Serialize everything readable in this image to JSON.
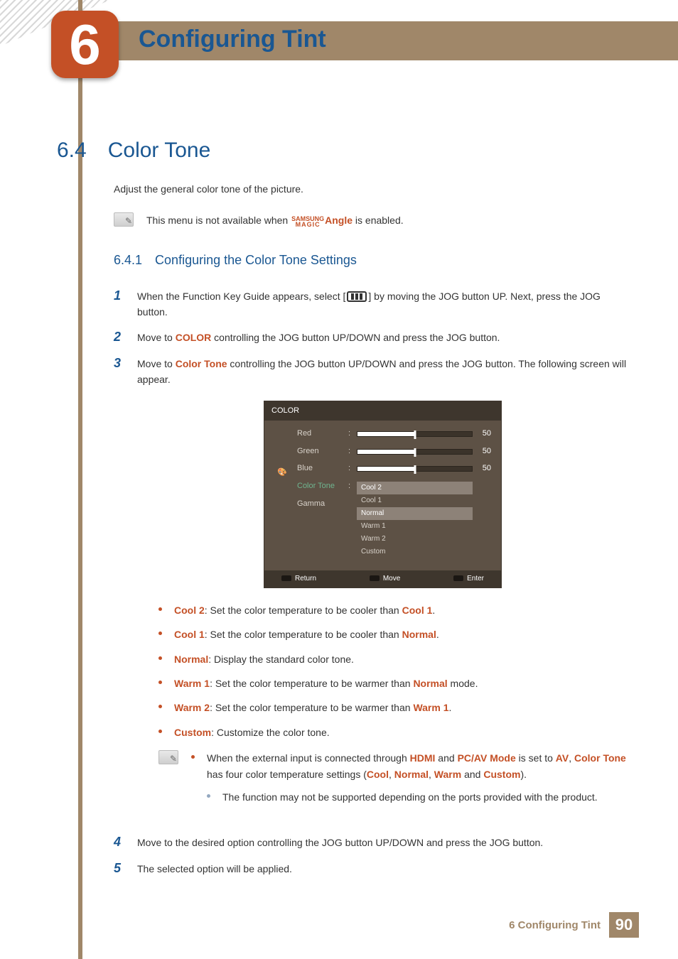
{
  "colors": {
    "stripe": "#a08769",
    "accent": "#c45026",
    "heading": "#1a5792",
    "osd_bg": "#5d5145",
    "osd_header": "#3e362d",
    "osd_highlight": "#6fb48f",
    "sub_bullet": "#94a8c0"
  },
  "chapter": {
    "number": "6",
    "title": "Configuring Tint"
  },
  "section": {
    "number": "6.4",
    "title": "Color Tone"
  },
  "intro": "Adjust the general color tone of the picture.",
  "note1": {
    "pre": "This menu is not available when ",
    "brand_top": "SAMSUNG",
    "brand_bottom": "MAGIC",
    "angle": "Angle",
    "post": " is enabled."
  },
  "subsection": {
    "number": "6.4.1",
    "title": "Configuring the Color Tone Settings"
  },
  "steps": {
    "s1": {
      "num": "1",
      "pre": "When the Function Key Guide appears, select [",
      "post": "] by moving the JOG button UP. Next, press the JOG button."
    },
    "s2": {
      "num": "2",
      "pre": "Move to ",
      "kw": "COLOR",
      "post": " controlling the JOG button UP/DOWN and press the JOG button."
    },
    "s3": {
      "num": "3",
      "pre": "Move to ",
      "kw": "Color Tone",
      "post": " controlling the JOG button UP/DOWN and press the JOG button. The following screen will appear."
    },
    "s4": {
      "num": "4",
      "text": "Move to the desired option controlling the JOG button UP/DOWN and press the JOG button."
    },
    "s5": {
      "num": "5",
      "text": "The selected option will be applied."
    }
  },
  "osd": {
    "title": "COLOR",
    "labels": {
      "red": "Red",
      "green": "Green",
      "blue": "Blue",
      "ct": "Color Tone",
      "gamma": "Gamma"
    },
    "values": {
      "red": "50",
      "green": "50",
      "blue": "50"
    },
    "options": {
      "cool2": "Cool 2",
      "cool1": "Cool 1",
      "normal": "Normal",
      "warm1": "Warm 1",
      "warm2": "Warm 2",
      "custom": "Custom"
    },
    "footer": {
      "return": "Return",
      "move": "Move",
      "enter": "Enter"
    }
  },
  "defs": {
    "cool2": {
      "kw": "Cool 2",
      "pre": ": Set the color temperature to be cooler than ",
      "kw2": "Cool 1",
      "post": "."
    },
    "cool1": {
      "kw": "Cool 1",
      "pre": ": Set the color temperature to be cooler than ",
      "kw2": "Normal",
      "post": "."
    },
    "normal": {
      "kw": "Normal",
      "post": ": Display the standard color tone."
    },
    "warm1": {
      "kw": "Warm 1",
      "pre": ": Set the color temperature to be warmer than ",
      "kw2": "Normal",
      "post": " mode."
    },
    "warm2": {
      "kw": "Warm 2",
      "pre": ": Set the color temperature to be warmer than ",
      "kw2": "Warm 1",
      "post": "."
    },
    "custom": {
      "kw": "Custom",
      "post": ": Customize the color tone."
    }
  },
  "note2": {
    "line1": {
      "t1": "When the external input is connected through ",
      "hdmi": "HDMI",
      "t2": " and ",
      "pcav": "PC/AV Mode",
      "t3": " is set to ",
      "av": "AV",
      "t4": ", ",
      "ct": "Color Tone",
      "t5": " has four color temperature settings (",
      "cool": "Cool",
      "c1": ", ",
      "normal": "Normal",
      "c2": ", ",
      "warm": "Warm",
      "c3": " and ",
      "custom": "Custom",
      "t6": ")."
    },
    "line2": "The function may not be supported depending on the ports provided with the product."
  },
  "footer": {
    "text": "6 Configuring Tint",
    "page": "90"
  }
}
